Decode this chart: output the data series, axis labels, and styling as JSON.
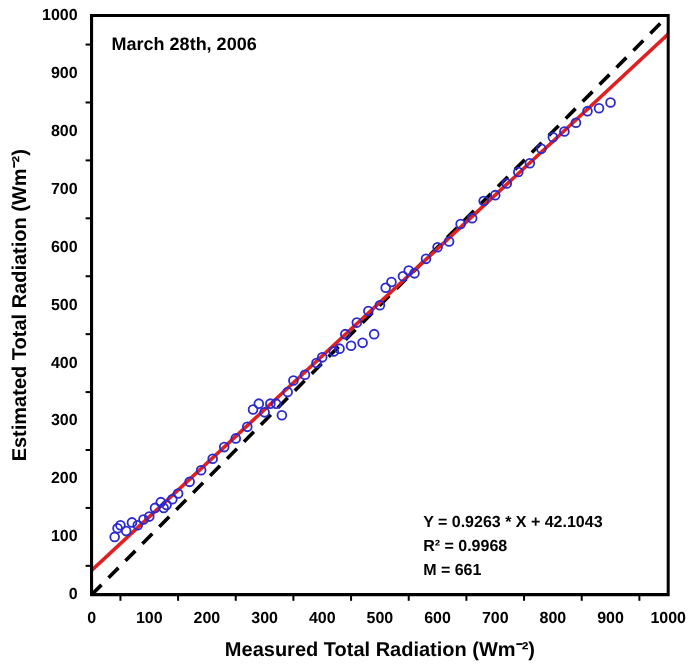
{
  "chart_data": {
    "type": "scatter",
    "title": "March 28th, 2006",
    "xlabel": "Measured Total Radiation (Wm⁻²)",
    "ylabel": "Estimated Total Radiation (Wm⁻²)",
    "annotations": [
      "Y = 0.9263 * X + 42.1043",
      "R² = 0.9968",
      "M = 661"
    ],
    "xlim": [
      0,
      1000
    ],
    "ylim": [
      0,
      1000
    ],
    "xticks": [
      0,
      {
        "value": 50,
        "label": null
      },
      100,
      {
        "value": 150,
        "label": null
      },
      200,
      {
        "value": 250,
        "label": null
      },
      300,
      {
        "value": 350,
        "label": null
      },
      400,
      {
        "value": 450,
        "label": null
      },
      500,
      {
        "value": 550,
        "label": null
      },
      600,
      {
        "value": 650,
        "label": null
      },
      700,
      {
        "value": 750,
        "label": null
      },
      800,
      {
        "value": 850,
        "label": null
      },
      900,
      {
        "value": 950,
        "label": null
      },
      1000
    ],
    "yticks": [
      0,
      {
        "value": 50,
        "label": null
      },
      100,
      {
        "value": 150,
        "label": null
      },
      200,
      {
        "value": 250,
        "label": null
      },
      300,
      {
        "value": 350,
        "label": null
      },
      400,
      {
        "value": 450,
        "label": null
      },
      500,
      {
        "value": 550,
        "label": null
      },
      600,
      {
        "value": 650,
        "label": null
      },
      700,
      {
        "value": 750,
        "label": null
      },
      800,
      {
        "value": 850,
        "label": null
      },
      900,
      {
        "value": 950,
        "label": null
      },
      1000
    ],
    "grid": false,
    "legend": false,
    "series": [
      {
        "type": "scatter",
        "marker": "circle",
        "color": "#2a2ad0",
        "x": [
          40,
          45,
          50,
          60,
          70,
          80,
          90,
          100,
          110,
          120,
          125,
          130,
          140,
          150,
          170,
          190,
          210,
          230,
          250,
          270,
          280,
          290,
          300,
          310,
          320,
          330,
          340,
          350,
          370,
          390,
          400,
          420,
          430,
          440,
          450,
          460,
          470,
          480,
          490,
          500,
          510,
          520,
          540,
          550,
          560,
          580,
          600,
          620,
          640,
          660,
          680,
          700,
          720,
          740,
          760,
          780,
          800,
          820,
          840,
          860,
          880,
          900
        ],
        "values": [
          100,
          115,
          120,
          110,
          125,
          120,
          130,
          135,
          150,
          160,
          150,
          155,
          165,
          175,
          195,
          215,
          235,
          255,
          270,
          290,
          320,
          330,
          315,
          330,
          330,
          310,
          350,
          370,
          380,
          400,
          410,
          420,
          425,
          450,
          430,
          470,
          435,
          490,
          450,
          500,
          530,
          540,
          550,
          560,
          555,
          580,
          600,
          610,
          640,
          650,
          680,
          690,
          710,
          730,
          745,
          770,
          790,
          800,
          815,
          835,
          840,
          850
        ]
      },
      {
        "type": "line",
        "marker": "none",
        "color": "#e02020",
        "x": [
          0,
          1000
        ],
        "values": [
          42,
          968
        ]
      },
      {
        "type": "line",
        "marker": "none",
        "color": "#000000",
        "line_style": "dashed",
        "x": [
          0,
          1000
        ],
        "values": [
          0,
          1000
        ]
      }
    ]
  }
}
